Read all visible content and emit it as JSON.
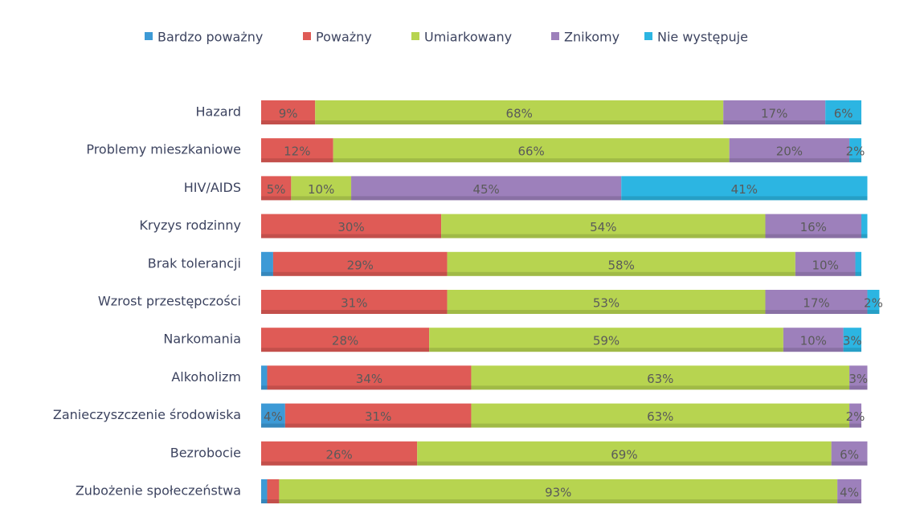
{
  "chart_data": {
    "type": "stacked_bar_horizontal",
    "categories": [
      "Hazard",
      "Problemy mieszkaniowe",
      "HIV/AIDS",
      "Kryzys rodzinny",
      "Brak tolerancji",
      "Wzrost przestępczości",
      "Narkomania",
      "Alkoholizm",
      "Zanieczyszczenie środowiska",
      "Bezrobocie",
      "Zubożenie społeczeństwa"
    ],
    "xlim": [
      0,
      100
    ],
    "legend": "top",
    "series": [
      {
        "name": "Bardzo poważny",
        "color": "#3d9ad6",
        "values": [
          0,
          0,
          0,
          0,
          2,
          0,
          0,
          1,
          4,
          0,
          1
        ],
        "value_labels": [
          null,
          null,
          null,
          null,
          null,
          null,
          null,
          null,
          "4%",
          null,
          null
        ]
      },
      {
        "name": "Poważny",
        "color": "#df5b56",
        "values": [
          9,
          12,
          5,
          30,
          29,
          31,
          28,
          34,
          31,
          26,
          2
        ],
        "value_labels": [
          "9%",
          "12%",
          "5%",
          "30%",
          "29%",
          "31%",
          "28%",
          "34%",
          "31%",
          "26%",
          null
        ]
      },
      {
        "name": "Umiarkowany",
        "color": "#b7d450",
        "values": [
          68,
          66,
          10,
          54,
          58,
          53,
          59,
          63,
          63,
          69,
          93
        ],
        "value_labels": [
          "68%",
          "66%",
          "10%",
          "54%",
          "58%",
          "53%",
          "59%",
          "63%",
          "63%",
          "69%",
          "93%"
        ]
      },
      {
        "name": "Znikomy",
        "color": "#9d80bb",
        "values": [
          17,
          20,
          45,
          16,
          10,
          17,
          10,
          3,
          2,
          6,
          4
        ],
        "value_labels": [
          "17%",
          "20%",
          "45%",
          "16%",
          "10%",
          "17%",
          "10%",
          "3%",
          "2%",
          "6%",
          "4%"
        ]
      },
      {
        "name": "Nie występuje",
        "color": "#2cb5e2",
        "values": [
          6,
          2,
          41,
          1,
          1,
          2,
          3,
          0,
          0,
          0,
          0
        ],
        "value_labels": [
          "6%",
          "2%",
          "41%",
          null,
          null,
          "2%",
          "3%",
          null,
          null,
          null,
          null
        ]
      }
    ]
  }
}
